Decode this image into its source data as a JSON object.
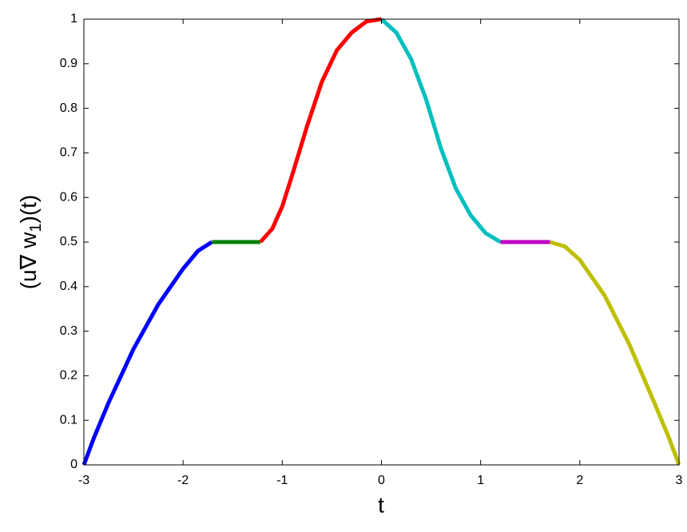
{
  "chart_data": {
    "type": "line",
    "xlabel": "t",
    "ylabel": [
      "(u∇ w",
      "1",
      ")(t)"
    ],
    "xlim": [
      -3,
      3
    ],
    "ylim": [
      0,
      1
    ],
    "xticks": [
      -3,
      -2,
      -1,
      0,
      1,
      2,
      3
    ],
    "yticks": [
      0,
      0.1,
      0.2,
      0.3,
      0.4,
      0.5,
      0.6,
      0.7,
      0.8,
      0.9,
      1
    ],
    "grid": false,
    "line_width": 5,
    "series": [
      {
        "color": "#0000ff",
        "x": [
          -3,
          -2.9,
          -2.75,
          -2.5,
          -2.25,
          -2,
          -1.85,
          -1.71
        ],
        "values": [
          0,
          0.06,
          0.14,
          0.26,
          0.36,
          0.44,
          0.48,
          0.5
        ]
      },
      {
        "color": "#008000",
        "x": [
          -1.71,
          -1.22
        ],
        "values": [
          0.5,
          0.5
        ]
      },
      {
        "color": "#ff0000",
        "x": [
          -1.22,
          -1.1,
          -1,
          -0.9,
          -0.75,
          -0.6,
          -0.45,
          -0.3,
          -0.15,
          0
        ],
        "values": [
          0.5,
          0.53,
          0.58,
          0.65,
          0.76,
          0.86,
          0.93,
          0.97,
          0.995,
          1
        ]
      },
      {
        "color": "#00bfbf",
        "x": [
          0,
          0.15,
          0.3,
          0.45,
          0.6,
          0.75,
          0.9,
          1.05,
          1.2
        ],
        "values": [
          1,
          0.97,
          0.91,
          0.82,
          0.71,
          0.62,
          0.56,
          0.52,
          0.5
        ]
      },
      {
        "color": "#bf00bf",
        "x": [
          1.2,
          1.7
        ],
        "values": [
          0.5,
          0.5
        ]
      },
      {
        "color": "#bfbf00",
        "x": [
          1.7,
          1.85,
          2,
          2.25,
          2.5,
          2.75,
          2.9,
          3
        ],
        "values": [
          0.5,
          0.49,
          0.46,
          0.38,
          0.27,
          0.14,
          0.06,
          0
        ]
      }
    ]
  }
}
